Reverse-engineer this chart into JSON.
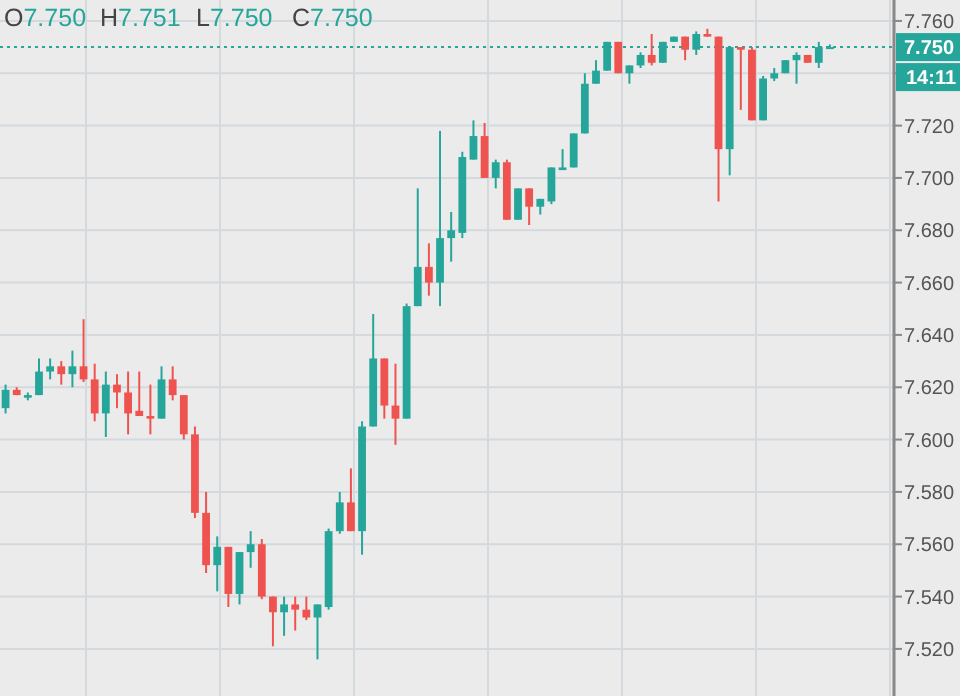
{
  "chart_data": {
    "type": "candlestick",
    "categories": [
      null,
      null,
      null,
      null,
      null,
      null,
      null,
      null,
      null,
      null,
      null,
      null,
      null,
      null,
      null,
      null,
      null,
      null,
      null,
      null,
      null,
      null,
      null,
      null,
      null,
      null,
      null,
      null,
      null,
      null,
      null,
      null,
      null,
      null,
      null,
      null,
      null,
      null,
      null,
      null,
      null,
      null,
      null,
      null,
      null,
      null,
      null,
      null,
      null,
      null,
      null,
      null,
      null,
      null,
      null,
      null,
      null,
      null,
      null,
      null,
      null,
      null,
      null,
      null,
      null,
      null,
      null,
      null,
      null,
      null,
      null,
      null,
      null,
      null,
      null
    ],
    "ohlc": [
      [
        7.612,
        7.621,
        7.61,
        7.619
      ],
      [
        7.619,
        7.62,
        7.617,
        7.617
      ],
      [
        7.616,
        7.618,
        7.615,
        7.617
      ],
      [
        7.617,
        7.631,
        7.617,
        7.626
      ],
      [
        7.626,
        7.631,
        7.623,
        7.628
      ],
      [
        7.628,
        7.63,
        7.621,
        7.625
      ],
      [
        7.625,
        7.634,
        7.62,
        7.628
      ],
      [
        7.628,
        7.646,
        7.622,
        7.623
      ],
      [
        7.623,
        7.629,
        7.607,
        7.61
      ],
      [
        7.61,
        7.626,
        7.601,
        7.621
      ],
      [
        7.621,
        7.625,
        7.612,
        7.618
      ],
      [
        7.618,
        7.626,
        7.602,
        7.61
      ],
      [
        7.611,
        7.626,
        7.609,
        7.609
      ],
      [
        7.609,
        7.621,
        7.602,
        7.608
      ],
      [
        7.608,
        7.628,
        7.608,
        7.623
      ],
      [
        7.623,
        7.628,
        7.615,
        7.617
      ],
      [
        7.617,
        7.617,
        7.6,
        7.602
      ],
      [
        7.602,
        7.605,
        7.57,
        7.572
      ],
      [
        7.572,
        7.58,
        7.549,
        7.552
      ],
      [
        7.552,
        7.563,
        7.542,
        7.559
      ],
      [
        7.559,
        7.559,
        7.536,
        7.541
      ],
      [
        7.541,
        7.557,
        7.537,
        7.557
      ],
      [
        7.557,
        7.565,
        7.551,
        7.56
      ],
      [
        7.56,
        7.562,
        7.539,
        7.54
      ],
      [
        7.54,
        7.54,
        7.521,
        7.534
      ],
      [
        7.534,
        7.54,
        7.525,
        7.537
      ],
      [
        7.537,
        7.54,
        7.527,
        7.535
      ],
      [
        7.535,
        7.54,
        7.531,
        7.532
      ],
      [
        7.532,
        7.537,
        7.516,
        7.537
      ],
      [
        7.536,
        7.566,
        7.535,
        7.565
      ],
      [
        7.565,
        7.58,
        7.564,
        7.576
      ],
      [
        7.576,
        7.589,
        7.565,
        7.565
      ],
      [
        7.565,
        7.607,
        7.556,
        7.605
      ],
      [
        7.605,
        7.648,
        7.605,
        7.631
      ],
      [
        7.631,
        7.631,
        7.608,
        7.613
      ],
      [
        7.613,
        7.629,
        7.598,
        7.608
      ],
      [
        7.608,
        7.652,
        7.608,
        7.651
      ],
      [
        7.651,
        7.696,
        7.651,
        7.666
      ],
      [
        7.666,
        7.675,
        7.655,
        7.66
      ],
      [
        7.66,
        7.718,
        7.651,
        7.677
      ],
      [
        7.677,
        7.687,
        7.668,
        7.68
      ],
      [
        7.679,
        7.71,
        7.677,
        7.708
      ],
      [
        7.707,
        7.722,
        7.707,
        7.716
      ],
      [
        7.716,
        7.721,
        7.7,
        7.7
      ],
      [
        7.7,
        7.707,
        7.696,
        7.706
      ],
      [
        7.706,
        7.707,
        7.684,
        7.684
      ],
      [
        7.684,
        7.696,
        7.684,
        7.696
      ],
      [
        7.696,
        7.696,
        7.682,
        7.689
      ],
      [
        7.689,
        7.692,
        7.686,
        7.692
      ],
      [
        7.691,
        7.704,
        7.69,
        7.704
      ],
      [
        7.703,
        7.711,
        7.703,
        7.704
      ],
      [
        7.704,
        7.717,
        7.704,
        7.717
      ],
      [
        7.717,
        7.74,
        7.717,
        7.736
      ],
      [
        7.736,
        7.745,
        7.736,
        7.741
      ],
      [
        7.741,
        7.752,
        7.741,
        7.752
      ],
      [
        7.752,
        7.752,
        7.74,
        7.74
      ],
      [
        7.74,
        7.743,
        7.736,
        7.743
      ],
      [
        7.743,
        7.748,
        7.742,
        7.747
      ],
      [
        7.747,
        7.755,
        7.743,
        7.744
      ],
      [
        7.744,
        7.752,
        7.744,
        7.752
      ],
      [
        7.752,
        7.754,
        7.752,
        7.754
      ],
      [
        7.754,
        7.754,
        7.745,
        7.749
      ],
      [
        7.749,
        7.756,
        7.747,
        7.755
      ],
      [
        7.755,
        7.757,
        7.754,
        7.754
      ],
      [
        7.754,
        7.754,
        7.691,
        7.711
      ],
      [
        7.711,
        7.75,
        7.701,
        7.75
      ],
      [
        7.75,
        7.75,
        7.726,
        7.749
      ],
      [
        7.749,
        7.75,
        7.722,
        7.722
      ],
      [
        7.722,
        7.739,
        7.722,
        7.738
      ],
      [
        7.738,
        7.742,
        7.737,
        7.74
      ],
      [
        7.74,
        7.745,
        7.74,
        7.745
      ],
      [
        7.745,
        7.748,
        7.736,
        7.747
      ],
      [
        7.747,
        7.747,
        7.744,
        7.744
      ],
      [
        7.744,
        7.752,
        7.742,
        7.75
      ],
      [
        7.75,
        7.751,
        7.75,
        7.75
      ]
    ],
    "colors": [
      "#26a69a",
      "#ef5350",
      "#26a69a",
      "#26a69a",
      "#26a69a",
      "#ef5350",
      "#26a69a",
      "#ef5350",
      "#ef5350",
      "#26a69a",
      "#ef5350",
      "#ef5350",
      "#ef5350",
      "#ef5350",
      "#26a69a",
      "#ef5350",
      "#ef5350",
      "#ef5350",
      "#ef5350",
      "#26a69a",
      "#ef5350",
      "#26a69a",
      "#26a69a",
      "#ef5350",
      "#ef5350",
      "#26a69a",
      "#ef5350",
      "#ef5350",
      "#26a69a",
      "#26a69a",
      "#26a69a",
      "#ef5350",
      "#26a69a",
      "#26a69a",
      "#ef5350",
      "#ef5350",
      "#26a69a",
      "#26a69a",
      "#ef5350",
      "#26a69a",
      "#26a69a",
      "#26a69a",
      "#26a69a",
      "#ef5350",
      "#26a69a",
      "#ef5350",
      "#26a69a",
      "#ef5350",
      "#26a69a",
      "#26a69a",
      "#26a69a",
      "#26a69a",
      "#26a69a",
      "#26a69a",
      "#26a69a",
      "#ef5350",
      "#26a69a",
      "#26a69a",
      "#ef5350",
      "#26a69a",
      "#26a69a",
      "#ef5350",
      "#26a69a",
      "#ef5350",
      "#ef5350",
      "#26a69a",
      "#ef5350",
      "#ef5350",
      "#26a69a",
      "#26a69a",
      "#26a69a",
      "#26a69a",
      "#ef5350",
      "#26a69a",
      "#26a69a"
    ],
    "ylim": [
      7.502,
      7.768
    ],
    "yticks": [
      {
        "value": 7.52,
        "label": "7.520"
      },
      {
        "value": 7.54,
        "label": "7.540"
      },
      {
        "value": 7.56,
        "label": "7.560"
      },
      {
        "value": 7.58,
        "label": "7.580"
      },
      {
        "value": 7.6,
        "label": "7.600"
      },
      {
        "value": 7.62,
        "label": "7.620"
      },
      {
        "value": 7.64,
        "label": "7.640"
      },
      {
        "value": 7.66,
        "label": "7.660"
      },
      {
        "value": 7.68,
        "label": "7.680"
      },
      {
        "value": 7.7,
        "label": "7.700"
      },
      {
        "value": 7.72,
        "label": "7.720"
      },
      {
        "value": 7.74,
        "label": null
      },
      {
        "value": 7.76,
        "label": "7.760"
      }
    ],
    "grid": true,
    "ref_lines": [
      {
        "axis": "y",
        "value": 7.75,
        "label": "7.750",
        "color": "#26a69a",
        "line_style": "dotted"
      }
    ],
    "annotations": [
      "O7.750",
      "H7.751",
      "L7.750",
      "C7.750",
      "14:11"
    ]
  }
}
